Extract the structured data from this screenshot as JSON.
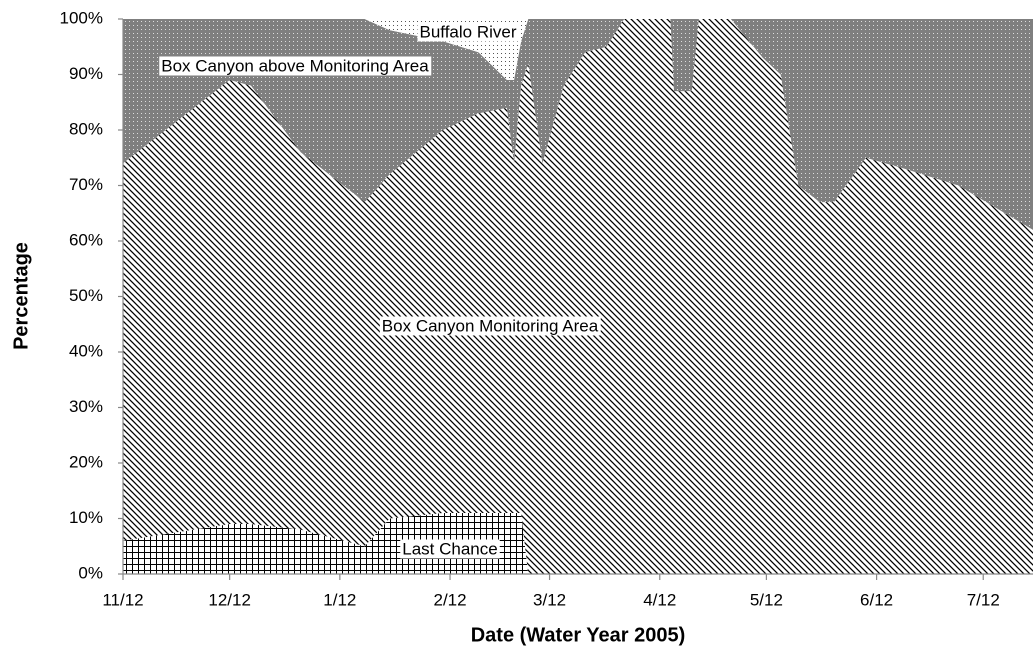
{
  "chart_data": {
    "type": "stacked-area",
    "xlabel": "Date (Water Year 2005)",
    "ylabel": "Percentage",
    "x": [
      0,
      30,
      36,
      50,
      62,
      68,
      75,
      90,
      100,
      108,
      110,
      112,
      114,
      118,
      124,
      130,
      136,
      141,
      154,
      155,
      160,
      162,
      171,
      180,
      185,
      190,
      196,
      200,
      209,
      220,
      235,
      256
    ],
    "series": [
      {
        "name": "Last Chance",
        "color": "#ffffff",
        "pattern": "grid",
        "values": [
          6,
          9,
          9,
          8,
          6,
          5,
          10,
          11,
          11,
          11,
          11,
          11,
          0,
          0,
          0,
          0,
          0,
          0,
          0,
          0,
          0,
          0,
          0,
          0,
          0,
          0,
          0,
          0,
          0,
          0,
          0,
          0
        ]
      },
      {
        "name": "Box Canyon Monitoring Area",
        "color": "#ffffff",
        "pattern": "diagonal",
        "values": [
          68,
          80,
          79,
          68,
          64,
          62,
          62,
          69,
          72,
          73,
          63,
          77,
          92,
          74,
          88,
          94,
          95,
          100,
          100,
          87,
          87,
          100,
          100,
          93,
          90,
          70,
          67,
          67,
          75,
          73,
          70,
          62
        ]
      },
      {
        "name": "Box Canyon above Monitoring Area",
        "color": "#7f7f7f",
        "pattern": "dots",
        "values": [
          26,
          11,
          12,
          24,
          30,
          33,
          26,
          16,
          11,
          5,
          15,
          8,
          8,
          26,
          12,
          6,
          5,
          0,
          0,
          13,
          13,
          0,
          0,
          7,
          10,
          30,
          33,
          33,
          25,
          27,
          30,
          38
        ]
      },
      {
        "name": "Buffalo River",
        "color": "#ffffff",
        "pattern": "dots",
        "values": [
          0,
          0,
          0,
          0,
          0,
          0,
          2,
          4,
          6,
          11,
          11,
          4,
          0,
          0,
          0,
          0,
          0,
          0,
          0,
          0,
          0,
          0,
          0,
          0,
          0,
          0,
          0,
          0,
          0,
          0,
          0,
          0
        ]
      }
    ],
    "xlim": [
      0,
      256
    ],
    "xticks": [
      {
        "value": 0,
        "label": "11/12"
      },
      {
        "value": 30,
        "label": "12/12"
      },
      {
        "value": 61,
        "label": "1/12"
      },
      {
        "value": 92,
        "label": "2/12"
      },
      {
        "value": 120,
        "label": "3/12"
      },
      {
        "value": 151,
        "label": "4/12"
      },
      {
        "value": 181,
        "label": "5/12"
      },
      {
        "value": 212,
        "label": "6/12"
      },
      {
        "value": 242,
        "label": "7/12"
      }
    ],
    "ylim": [
      0,
      100
    ],
    "yticks": [
      {
        "value": 0,
        "label": "0%"
      },
      {
        "value": 10,
        "label": "10%"
      },
      {
        "value": 20,
        "label": "20%"
      },
      {
        "value": 30,
        "label": "30%"
      },
      {
        "value": 40,
        "label": "40%"
      },
      {
        "value": 50,
        "label": "50%"
      },
      {
        "value": 60,
        "label": "60%"
      },
      {
        "value": 70,
        "label": "70%"
      },
      {
        "value": 80,
        "label": "80%"
      },
      {
        "value": 90,
        "label": "90%"
      },
      {
        "value": 100,
        "label": "100%"
      }
    ]
  }
}
